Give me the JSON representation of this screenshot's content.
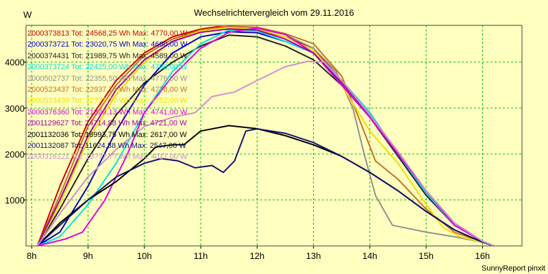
{
  "chart_data": {
    "type": "line",
    "title": "Wechselrichtervergleich vom 29.11.2016",
    "ylabel": "W",
    "xlabel": "",
    "credit": "SunnyReport pinxit",
    "xlim": [
      7.9,
      16.7
    ],
    "ylim": [
      0,
      4800
    ],
    "x_ticks": [
      8,
      9,
      10,
      11,
      12,
      13,
      14,
      15,
      16
    ],
    "x_tick_labels": [
      "8h",
      "9h",
      "10h",
      "11h",
      "12h",
      "13h",
      "14h",
      "15h",
      "16h"
    ],
    "y_ticks": [
      1000,
      2000,
      3000,
      4000
    ],
    "y_tick_labels": [
      "1000",
      "2000",
      "3000",
      "4000"
    ],
    "grid": true,
    "legend_position": "top-left",
    "series": [
      {
        "name": "2000373813 Tot: 24568,25 Wh Max: 4770,00 W",
        "color": "#cc0000",
        "x": [
          8.1,
          8.5,
          9,
          9.5,
          10,
          10.5,
          11,
          11.3,
          11.6,
          12,
          12.5,
          13,
          13.5,
          14,
          14.5,
          15,
          15.5,
          16,
          16.2
        ],
        "y": [
          0,
          1300,
          2700,
          3600,
          4200,
          4550,
          4720,
          4770,
          4760,
          4700,
          4550,
          4300,
          3600,
          2800,
          2000,
          1200,
          500,
          100,
          0
        ]
      },
      {
        "name": "2000373721 Tot: 23020,75 Wh Max: 4660,00 W",
        "color": "#0000cc",
        "x": [
          8.1,
          8.5,
          9,
          9.5,
          10,
          10.5,
          11,
          11.5,
          12,
          12.5,
          13,
          13.5,
          14,
          14.5,
          15,
          15.5,
          16,
          16.2
        ],
        "y": [
          0,
          300,
          1300,
          2500,
          3500,
          4200,
          4550,
          4660,
          4640,
          4450,
          4200,
          3600,
          2900,
          2000,
          1150,
          450,
          100,
          0
        ]
      },
      {
        "name": "2000374431 Tot: 21989,75 Wh Max: 4589,00 W",
        "color": "#222222",
        "x": [
          8.1,
          8.5,
          9,
          9.5,
          10,
          10.5,
          11,
          11.5,
          12,
          12.5,
          13,
          13.5,
          14,
          14.5,
          15,
          15.5,
          16,
          16.2
        ],
        "y": [
          0,
          800,
          1900,
          2850,
          3550,
          4000,
          4350,
          4589,
          4550,
          4350,
          4050,
          3500,
          2800,
          1950,
          1100,
          450,
          100,
          0
        ]
      },
      {
        "name": "2000373724 Tot: 22425,00 Wh Max: 4700,00 W",
        "color": "#00e0e0",
        "x": [
          8.1,
          8.5,
          9,
          9.5,
          10,
          10.5,
          11,
          11.5,
          12,
          12.5,
          13,
          13.5,
          14,
          14.5,
          15,
          15.5,
          16,
          16.2
        ],
        "y": [
          0,
          200,
          900,
          1800,
          2900,
          3800,
          4400,
          4700,
          4680,
          4450,
          4200,
          3600,
          2900,
          2000,
          1150,
          450,
          100,
          0
        ]
      },
      {
        "name": "2000502737 Tot: 22355,50 Wh Max: 4776,00 W",
        "color": "#909090",
        "x": [
          8.1,
          8.5,
          9,
          9.5,
          10,
          10.5,
          11,
          11.5,
          12,
          12.5,
          13,
          13.4,
          13.7,
          13.9,
          14.1,
          14.4,
          15,
          15.5,
          16,
          16.2
        ],
        "y": [
          0,
          1000,
          2300,
          3300,
          4000,
          4450,
          4700,
          4776,
          4740,
          4600,
          4300,
          3800,
          3000,
          2000,
          1100,
          450,
          300,
          200,
          80,
          0
        ]
      },
      {
        "name": "2000523437 Tot: 22937,75 Wh Max: 4778,00 W",
        "color": "#c87020",
        "x": [
          8.1,
          8.5,
          9,
          9.5,
          10,
          10.5,
          11,
          11.5,
          12,
          12.5,
          13,
          13.5,
          13.8,
          14.1,
          14.5,
          15,
          15.5,
          16,
          16.2
        ],
        "y": [
          0,
          1100,
          2600,
          3500,
          4150,
          4500,
          4700,
          4778,
          4760,
          4620,
          4400,
          3700,
          2800,
          1850,
          1450,
          800,
          300,
          80,
          0
        ]
      },
      {
        "name": "2000523439 Tot: 22???,?? Wh Max: 4752,00 W",
        "color": "#f0e000",
        "x": [
          8.1,
          8.5,
          9,
          9.5,
          10,
          10.5,
          11,
          11.5,
          12,
          12.5,
          13,
          13.5,
          14,
          14.5,
          15,
          15.3,
          15.6,
          16,
          16.2
        ],
        "y": [
          0,
          900,
          2300,
          3300,
          4000,
          4450,
          4680,
          4752,
          4720,
          4550,
          4250,
          3500,
          2500,
          1800,
          900,
          400,
          200,
          80,
          0
        ]
      },
      {
        "name": "2000376360 Tot: 21329,13 Wh Max: 4741,00 W",
        "color": "#e000e0",
        "x": [
          8.1,
          8.6,
          8.9,
          9.3,
          9.7,
          10,
          10.5,
          11,
          11.5,
          12,
          12.5,
          13,
          13.5,
          14,
          14.5,
          15,
          15.5,
          16,
          16.2
        ],
        "y": [
          0,
          150,
          300,
          1000,
          2000,
          2900,
          3700,
          4300,
          4650,
          4741,
          4600,
          4200,
          3500,
          2800,
          2000,
          1200,
          450,
          100,
          0
        ]
      },
      {
        "name": "2001129627 Tot: 24714,88 Wh Max: 4721,00 W",
        "color": "#a000a0",
        "x": [
          8.1,
          8.5,
          9,
          9.5,
          10,
          10.5,
          11,
          11.5,
          12,
          12.5,
          13,
          13.5,
          14,
          14.5,
          15,
          15.5,
          16,
          16.2
        ],
        "y": [
          0,
          1000,
          2400,
          3400,
          4050,
          4450,
          4650,
          4721,
          4700,
          4500,
          4200,
          3550,
          2850,
          2050,
          1200,
          500,
          100,
          0
        ]
      },
      {
        "name": "2001132036 Tot: 18993,75 Wh Max: 2617,00 W",
        "color": "#000000",
        "x": [
          8.1,
          8.5,
          9,
          9.5,
          10,
          10.2,
          10.5,
          10.7,
          11,
          11.5,
          12,
          12.5,
          13,
          13.5,
          14,
          14.5,
          15,
          15.5,
          16,
          16.2
        ],
        "y": [
          0,
          500,
          1000,
          1400,
          1900,
          2150,
          2200,
          2200,
          2500,
          2617,
          2550,
          2400,
          2200,
          1950,
          1600,
          1200,
          750,
          350,
          80,
          0
        ]
      },
      {
        "name": "2001132087 Tot: 11624,88 Wh Max: 2547,00 W",
        "color": "#101070",
        "x": [
          8.1,
          8.5,
          9,
          9.5,
          10,
          10.3,
          10.6,
          10.9,
          11.2,
          11.4,
          11.6,
          11.8,
          12,
          12.5,
          13,
          13.5,
          14,
          14.5,
          15,
          15.5,
          16,
          16.2
        ],
        "y": [
          0,
          450,
          1000,
          1500,
          1800,
          1900,
          1850,
          1700,
          1750,
          1600,
          1850,
          2500,
          2547,
          2450,
          2250,
          1950,
          1600,
          1200,
          750,
          350,
          80,
          0
        ]
      },
      {
        "name": "2000316121 Tot: 19???,?? Wh Max: 4017,00 W",
        "color": "#d090d0",
        "x": [
          8.1,
          8.5,
          9,
          9.5,
          10,
          10.5,
          10.9,
          11.2,
          11.6,
          12,
          12.5,
          12.9,
          13.2,
          13.5,
          14,
          14.5,
          15,
          15.5,
          16,
          16.2
        ],
        "y": [
          0,
          700,
          1500,
          2100,
          2600,
          2800,
          2900,
          3250,
          3350,
          3600,
          3900,
          4017,
          4000,
          3600,
          2850,
          2050,
          1200,
          500,
          100,
          0
        ]
      }
    ]
  }
}
